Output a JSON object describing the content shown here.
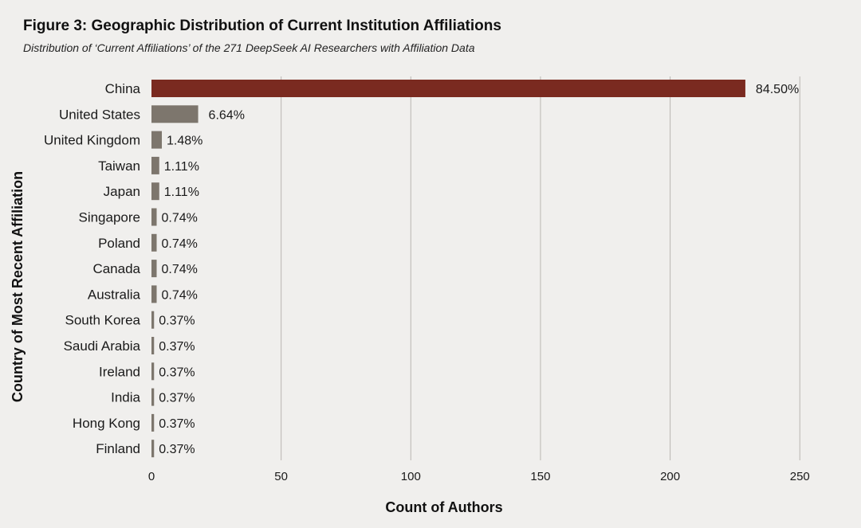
{
  "figure": {
    "title": "Figure 3: Geographic Distribution of Current Institution Affiliations",
    "subtitle": "Distribution of ‘Current Affiliations’ of the 271 DeepSeek AI Researchers with Affiliation Data"
  },
  "chart_data": {
    "type": "bar",
    "orientation": "horizontal",
    "title": "Figure 3: Geographic Distribution of Current Institution Affiliations",
    "subtitle": "Distribution of ‘Current Affiliations’ of the 271 DeepSeek AI Researchers with Affiliation Data",
    "xlabel": "Count of Authors",
    "ylabel": "Country of Most Recent Affiliation",
    "xlim": [
      0,
      260
    ],
    "xticks": [
      0,
      50,
      100,
      150,
      200,
      250
    ],
    "grid": "vertical",
    "categories": [
      "China",
      "United States",
      "United Kingdom",
      "Taiwan",
      "Japan",
      "Singapore",
      "Poland",
      "Canada",
      "Australia",
      "South Korea",
      "Saudi Arabia",
      "Ireland",
      "India",
      "Hong Kong",
      "Finland"
    ],
    "values": [
      229,
      18,
      4,
      3,
      3,
      2,
      2,
      2,
      2,
      1,
      1,
      1,
      1,
      1,
      1
    ],
    "labels": [
      "84.50%",
      "6.64%",
      "1.48%",
      "1.11%",
      "1.11%",
      "0.74%",
      "0.74%",
      "0.74%",
      "0.74%",
      "0.37%",
      "0.37%",
      "0.37%",
      "0.37%",
      "0.37%",
      "0.37%"
    ],
    "colors": {
      "highlight": "#7a2a20",
      "default": "#7d766d",
      "grid": "#b9b6b2"
    },
    "highlight_category": "China"
  }
}
